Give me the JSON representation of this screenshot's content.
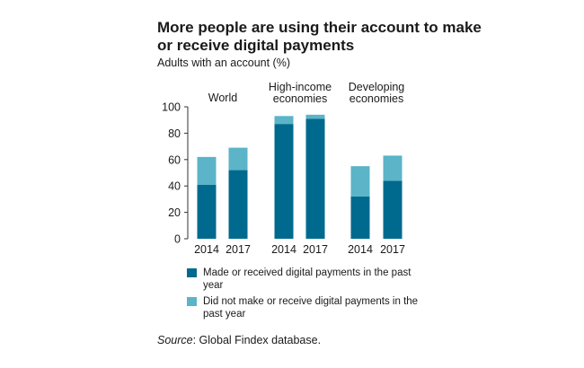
{
  "title": "More people are using their account to make or receive digital payments",
  "subtitle": "Adults with an account (%)",
  "colors": {
    "made": "#006a8e",
    "not_made": "#5bb4c8"
  },
  "chart_data": {
    "type": "bar",
    "stacked": true,
    "ylim": [
      0,
      100
    ],
    "yticks": [
      0,
      20,
      40,
      60,
      80,
      100
    ],
    "grid": false,
    "groups": [
      {
        "label": "World",
        "categories": [
          "2014",
          "2017"
        ]
      },
      {
        "label": "High-income economies",
        "label_lines": [
          "High-income",
          "economies"
        ],
        "categories": [
          "2014",
          "2017"
        ]
      },
      {
        "label": "Developing economies",
        "label_lines": [
          "Developing",
          "economies"
        ],
        "categories": [
          "2014",
          "2017"
        ]
      }
    ],
    "series": [
      {
        "name": "Made or received digital payments in the past year",
        "values": [
          41,
          52,
          87,
          91,
          32,
          44
        ]
      },
      {
        "name": "Did not make or receive digital payments in the past year",
        "values": [
          21,
          17,
          6,
          3,
          23,
          19
        ]
      }
    ],
    "legend_position": "bottom"
  },
  "legend": [
    {
      "label": "Made or received digital payments in the past year"
    },
    {
      "label": "Did not make or receive digital payments in the past year"
    }
  ],
  "source": {
    "prefix": "Source",
    "text": ": Global Findex database."
  }
}
